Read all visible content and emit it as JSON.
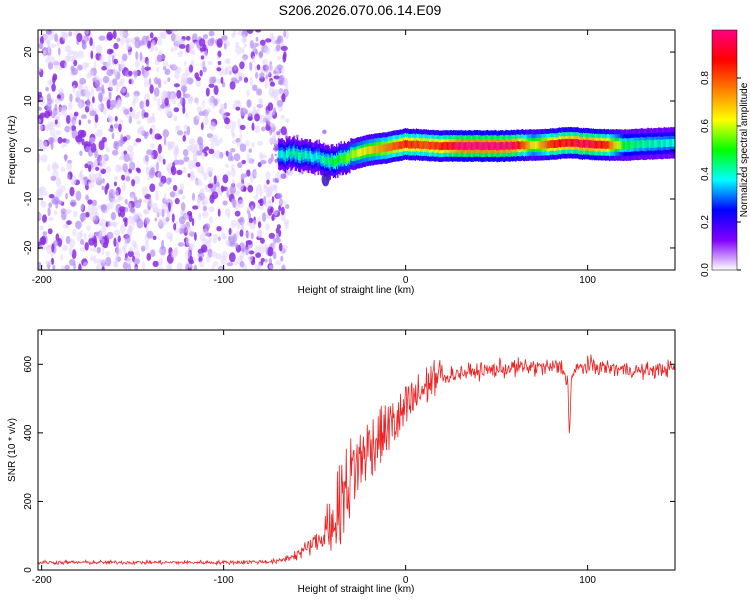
{
  "title": "S206.2026.070.06.14.E09",
  "chart_data": [
    {
      "type": "heatmap",
      "title": "S206.2026.070.06.14.E09",
      "xlabel": "Height of straight line (km)",
      "ylabel": "Frequency (Hz)",
      "xlim": [
        -202,
        148
      ],
      "ylim": [
        -24.5,
        24.5
      ],
      "xticks": [
        -200,
        -100,
        0,
        100
      ],
      "yticks": [
        -20,
        -10,
        0,
        10,
        20
      ],
      "xtick_labels": [
        "-200",
        "-100",
        "0",
        "100"
      ],
      "ytick_labels": [
        "-20",
        "-10",
        "0",
        "10",
        "20"
      ],
      "noise_region_x": [
        -202,
        -65
      ],
      "ridge": {
        "x": [
          -70,
          -60,
          -50,
          -40,
          -30,
          -20,
          -10,
          0,
          10,
          20,
          30,
          40,
          50,
          60,
          70,
          80,
          90,
          100,
          110,
          120,
          130,
          148
        ],
        "freq": [
          -1.0,
          -0.8,
          -1.5,
          -2.5,
          -1.0,
          0.0,
          0.5,
          1.2,
          1.0,
          0.8,
          0.8,
          0.8,
          0.8,
          0.9,
          1.0,
          1.2,
          1.5,
          1.2,
          1.0,
          1.0,
          1.2,
          1.5
        ],
        "amplitude": [
          0.3,
          0.35,
          0.3,
          0.4,
          0.5,
          0.6,
          0.7,
          0.8,
          0.75,
          0.8,
          0.95,
          0.95,
          0.95,
          0.9,
          0.55,
          0.8,
          0.85,
          0.9,
          0.8,
          0.4,
          0.35,
          0.3
        ]
      },
      "colorbar": {
        "label": "Normalized spectral amplitude",
        "range": [
          0,
          1
        ],
        "ticks": [
          0.0,
          0.2,
          0.4,
          0.6,
          0.8
        ],
        "tick_labels": [
          "0.0",
          "0.2",
          "0.4",
          "0.6",
          "0.8"
        ],
        "colormap": [
          "#ffffff",
          "#8000ff",
          "#0000ff",
          "#00ffff",
          "#00ff00",
          "#ffff00",
          "#ff8000",
          "#ff0000",
          "#ff0080"
        ]
      }
    },
    {
      "type": "line",
      "xlabel": "Height of straight line (km)",
      "ylabel": "SNR (10 * v/v)",
      "xlim": [
        -202,
        148
      ],
      "ylim": [
        0,
        700
      ],
      "xticks": [
        -200,
        -100,
        0,
        100
      ],
      "yticks": [
        0,
        200,
        400,
        600
      ],
      "xtick_labels": [
        "-200",
        "-100",
        "0",
        "100"
      ],
      "ytick_labels": [
        "0",
        "200",
        "400",
        "600"
      ],
      "series": [
        {
          "name": "SNR",
          "color": "#ee2222",
          "x": [
            -202,
            -150,
            -100,
            -70,
            -60,
            -55,
            -50,
            -45,
            -40,
            -35,
            -30,
            -25,
            -20,
            -15,
            -10,
            -5,
            0,
            5,
            10,
            15,
            20,
            25,
            30,
            40,
            50,
            60,
            70,
            80,
            85,
            89,
            90,
            91,
            95,
            100,
            110,
            120,
            130,
            140,
            148
          ],
          "y": [
            22,
            22,
            22,
            25,
            45,
            60,
            80,
            90,
            120,
            170,
            240,
            290,
            330,
            360,
            390,
            410,
            440,
            480,
            510,
            540,
            560,
            570,
            575,
            580,
            585,
            590,
            592,
            590,
            595,
            560,
            380,
            560,
            590,
            595,
            590,
            585,
            580,
            585,
            590
          ],
          "amplitude": [
            10,
            10,
            10,
            12,
            30,
            40,
            50,
            60,
            80,
            120,
            110,
            90,
            90,
            80,
            70,
            70,
            70,
            60,
            60,
            50,
            45,
            45,
            40,
            40,
            45,
            45,
            45,
            45,
            50,
            50,
            0,
            50,
            45,
            45,
            40,
            40,
            40,
            40,
            40
          ]
        }
      ]
    }
  ]
}
